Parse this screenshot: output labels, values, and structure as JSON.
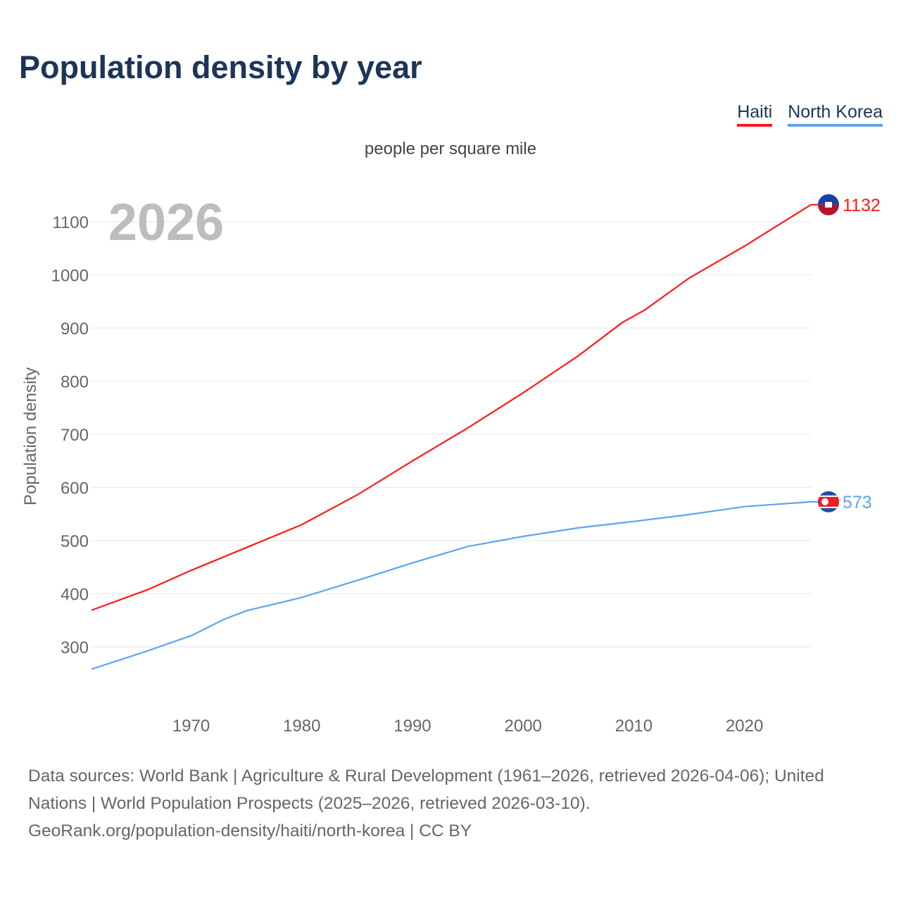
{
  "chart_data": {
    "type": "line",
    "title": "Population density by year",
    "subtitle": "people per square mile",
    "xlabel": "",
    "ylabel": "Population density",
    "year_watermark": "2026",
    "xlim": [
      1961,
      2026
    ],
    "ylim": [
      200,
      1150
    ],
    "x_ticks": [
      1970,
      1980,
      1990,
      2000,
      2010,
      2020
    ],
    "y_ticks": [
      300,
      400,
      500,
      600,
      700,
      800,
      900,
      1000,
      1100
    ],
    "grid": true,
    "legend_position": "top-right",
    "series": [
      {
        "name": "Haiti",
        "color": "#ff1a1a",
        "end_label": "1132",
        "x": [
          1961,
          1966,
          1970,
          1975,
          1980,
          1985,
          1990,
          1995,
          2000,
          2005,
          2009,
          2011,
          2015,
          2020,
          2026
        ],
        "values": [
          369,
          407,
          444,
          487,
          530,
          586,
          650,
          712,
          778,
          848,
          911,
          934,
          994,
          1054,
          1132
        ]
      },
      {
        "name": "North Korea",
        "color": "#5ea4ee",
        "end_label": "573",
        "x": [
          1961,
          1966,
          1970,
          1973,
          1975,
          1980,
          1985,
          1990,
          1995,
          2000,
          2005,
          2010,
          2015,
          2020,
          2026
        ],
        "values": [
          258,
          292,
          321,
          352,
          368,
          393,
          425,
          458,
          489,
          508,
          524,
          536,
          549,
          564,
          573
        ]
      }
    ]
  },
  "source_lines": [
    "Data sources: World Bank | Agriculture & Rural Development (1961–2026, retrieved 2026-04-06); United Nations | World Population Prospects (2025–2026, retrieved 2026-03-10).",
    "GeoRank.org/population-density/haiti/north-korea | CC BY"
  ]
}
